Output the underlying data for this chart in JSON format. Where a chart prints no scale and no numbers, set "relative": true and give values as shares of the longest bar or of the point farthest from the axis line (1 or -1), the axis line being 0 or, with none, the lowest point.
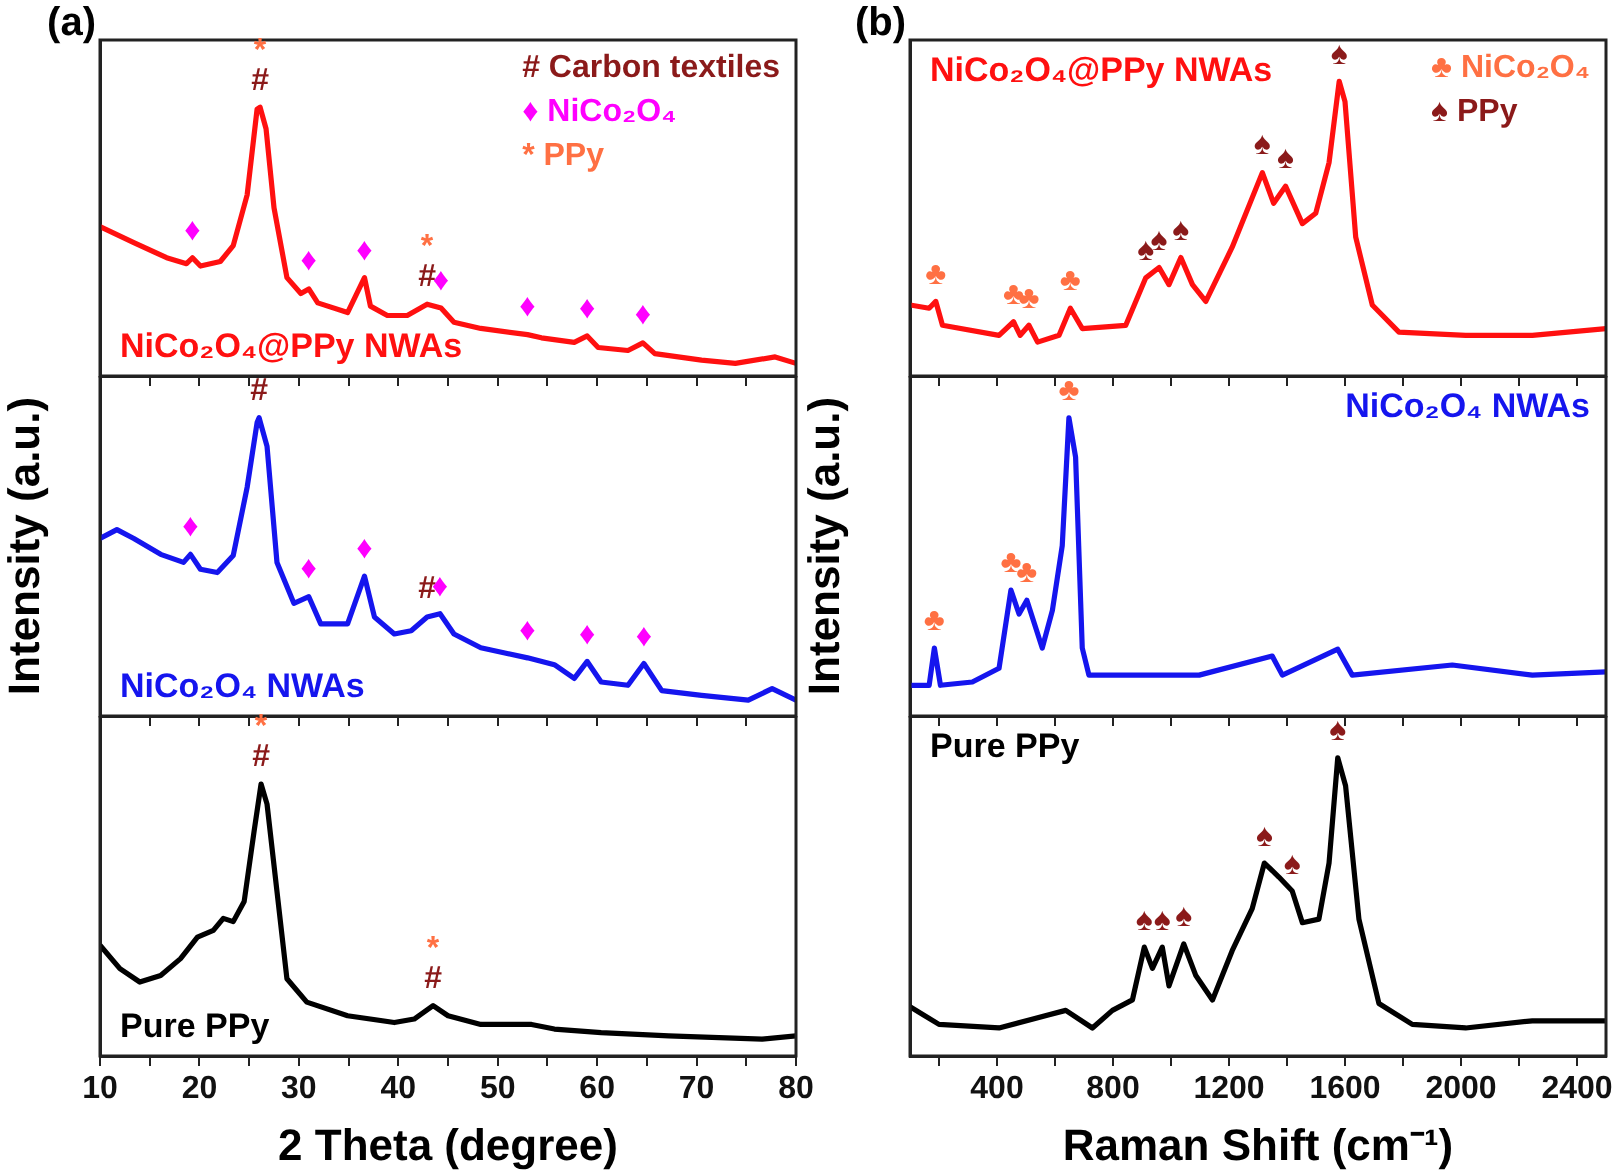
{
  "chart_data": [
    {
      "type": "line",
      "title": "(a)",
      "relative": true,
      "tick_labels": false,
      "xlim": [
        10,
        80
      ],
      "xticks": [
        10,
        {
          "value": 15,
          "label": null
        },
        20,
        {
          "value": 25,
          "label": null
        },
        30,
        {
          "value": 35,
          "label": null
        },
        40,
        {
          "value": 45,
          "label": null
        },
        50,
        {
          "value": 55,
          "label": null
        },
        60,
        {
          "value": 65,
          "label": null
        },
        70,
        {
          "value": 75,
          "label": null
        },
        80
      ],
      "series": [
        {
          "name": "NiCo₂O₄@PPy NWAs",
          "color": "#ff1010",
          "x": [
            10,
            13.4,
            16.7,
            18.7,
            19.3,
            20.1,
            22.1,
            23.4,
            24.8,
            25.8,
            26.1,
            26.7,
            27.5,
            28.8,
            30.2,
            31.0,
            31.9,
            34.9,
            36.6,
            37.2,
            38.9,
            40.9,
            42.9,
            44.3,
            45.6,
            48.3,
            53.0,
            54.4,
            57.7,
            59.0,
            60.1,
            63.1,
            64.6,
            65.8,
            70.5,
            73.9,
            77.9,
            80
          ],
          "values": [
            0.556,
            0.496,
            0.44,
            0.418,
            0.44,
            0.409,
            0.426,
            0.485,
            0.674,
            0.993,
            1.0,
            0.92,
            0.626,
            0.366,
            0.307,
            0.324,
            0.272,
            0.236,
            0.366,
            0.26,
            0.225,
            0.225,
            0.267,
            0.253,
            0.2,
            0.177,
            0.154,
            0.142,
            0.125,
            0.149,
            0.106,
            0.095,
            0.123,
            0.083,
            0.059,
            0.047,
            0.071,
            0.047
          ]
        }
      ],
      "annotations": [
        "# Carbon textiles",
        "♦ NiCo₂O₄",
        "* PPy",
        {
          "text": "#",
          "x": 26.1,
          "y": 1.0
        },
        {
          "text": "*",
          "x": 26.1,
          "y": 1.0
        },
        {
          "text": "♦",
          "x": 19.3,
          "y": 0.44
        },
        {
          "text": "♦",
          "x": 31.0,
          "y": 0.324
        },
        {
          "text": "♦",
          "x": 36.6,
          "y": 0.366
        },
        {
          "text": "♦",
          "x": 44.3,
          "y": 0.253
        },
        {
          "text": "♦",
          "x": 53.0,
          "y": 0.154
        },
        {
          "text": "♦",
          "x": 59.0,
          "y": 0.149
        },
        {
          "text": "♦",
          "x": 64.6,
          "y": 0.123
        },
        {
          "text": "#",
          "x": 42.9,
          "y": 0.267
        },
        {
          "text": "*",
          "x": 42.9,
          "y": 0.267
        }
      ]
    },
    {
      "type": "line",
      "ylabel": "Intensity (a.u.)",
      "relative": true,
      "tick_labels": false,
      "xlim": [
        10,
        80
      ],
      "xticks": [
        10,
        {
          "value": 15,
          "label": null
        },
        20,
        {
          "value": 25,
          "label": null
        },
        30,
        {
          "value": 35,
          "label": null
        },
        40,
        {
          "value": 45,
          "label": null
        },
        50,
        {
          "value": 55,
          "label": null
        },
        60,
        {
          "value": 65,
          "label": null
        },
        70,
        {
          "value": 75,
          "label": null
        },
        80
      ],
      "series": [
        {
          "name": "NiCo₂O₄ NWAs",
          "color": "#1515ee",
          "x": [
            10,
            11.7,
            13.4,
            16.1,
            18.4,
            19.1,
            20.1,
            21.8,
            23.4,
            24.8,
            25.8,
            26.0,
            26.8,
            27.8,
            29.5,
            31.0,
            32.2,
            34.9,
            36.6,
            37.6,
            39.6,
            41.3,
            42.9,
            44.2,
            45.6,
            48.3,
            53.0,
            55.7,
            57.7,
            59.0,
            60.4,
            63.1,
            64.7,
            66.5,
            70.5,
            75.2,
            77.6,
            80
          ],
          "values": [
            0.595,
            0.625,
            0.595,
            0.542,
            0.515,
            0.542,
            0.492,
            0.481,
            0.538,
            0.767,
            0.984,
            1.0,
            0.904,
            0.515,
            0.378,
            0.4,
            0.309,
            0.309,
            0.469,
            0.332,
            0.275,
            0.286,
            0.332,
            0.343,
            0.275,
            0.229,
            0.195,
            0.172,
            0.126,
            0.183,
            0.114,
            0.103,
            0.176,
            0.085,
            0.069,
            0.053,
            0.092,
            0.053
          ]
        }
      ],
      "annotations": [
        {
          "text": "#",
          "x": 26.0,
          "y": 1.0
        },
        {
          "text": "♦",
          "x": 19.1,
          "y": 0.542
        },
        {
          "text": "♦",
          "x": 31.0,
          "y": 0.4
        },
        {
          "text": "♦",
          "x": 36.6,
          "y": 0.469
        },
        {
          "text": "#",
          "x": 42.9,
          "y": 0.332
        },
        {
          "text": "♦",
          "x": 44.2,
          "y": 0.343
        },
        {
          "text": "♦",
          "x": 53.0,
          "y": 0.195
        },
        {
          "text": "♦",
          "x": 59.0,
          "y": 0.183
        },
        {
          "text": "♦",
          "x": 64.7,
          "y": 0.176
        }
      ]
    },
    {
      "type": "line",
      "xlabel": "2 Theta (degree)",
      "relative": true,
      "tick_labels": "x",
      "xlim": [
        10,
        80
      ],
      "xticks": [
        10,
        {
          "value": 15,
          "label": null
        },
        20,
        {
          "value": 25,
          "label": null
        },
        30,
        {
          "value": 35,
          "label": null
        },
        40,
        {
          "value": 45,
          "label": null
        },
        50,
        {
          "value": 55,
          "label": null
        },
        60,
        {
          "value": 65,
          "label": null
        },
        70,
        {
          "value": 75,
          "label": null
        },
        80
      ],
      "series": [
        {
          "name": "Pure PPy",
          "color": "#000000",
          "x": [
            10,
            12.0,
            14.0,
            16.1,
            18.1,
            19.8,
            21.4,
            22.4,
            23.4,
            24.5,
            25.5,
            26.2,
            26.8,
            27.8,
            28.8,
            30.8,
            34.9,
            39.6,
            41.6,
            43.5,
            45.0,
            48.3,
            53.4,
            55.7,
            60.4,
            67.2,
            76.6,
            80
          ],
          "values": [
            0.407,
            0.321,
            0.272,
            0.296,
            0.358,
            0.437,
            0.462,
            0.506,
            0.494,
            0.568,
            0.827,
            1.0,
            0.926,
            0.605,
            0.284,
            0.198,
            0.148,
            0.123,
            0.136,
            0.185,
            0.148,
            0.116,
            0.116,
            0.099,
            0.086,
            0.074,
            0.062,
            0.074
          ]
        }
      ],
      "annotations": [
        {
          "text": "#",
          "x": 26.2,
          "y": 1.0
        },
        {
          "text": "*",
          "x": 26.2,
          "y": 1.0
        },
        {
          "text": "#",
          "x": 43.5,
          "y": 0.185
        },
        {
          "text": "*",
          "x": 43.5,
          "y": 0.185
        }
      ]
    },
    {
      "type": "line",
      "title": "(b)",
      "relative": true,
      "tick_labels": false,
      "xlim": [
        100,
        2500
      ],
      "xticks": [
        {
          "value": 200,
          "label": null
        },
        400,
        {
          "value": 600,
          "label": null
        },
        800,
        {
          "value": 1000,
          "label": null
        },
        1200,
        {
          "value": 1400,
          "label": null
        },
        1600,
        {
          "value": 1800,
          "label": null
        },
        2000,
        {
          "value": 2200,
          "label": null
        },
        2400
      ],
      "series": [
        {
          "name": "NiCo₂O₄@PPy NWAs",
          "color": "#ff1010",
          "x": [
            100,
            166,
            189,
            212,
            407,
            457,
            480,
            510,
            540,
            614,
            653,
            694,
            844,
            913,
            959,
            993,
            1034,
            1074,
            1120,
            1211,
            1315,
            1354,
            1395,
            1453,
            1499,
            1545,
            1580,
            1600,
            1637,
            1694,
            1786,
            2016,
            2246,
            2500
          ],
          "values": [
            0.241,
            0.23,
            0.253,
            0.172,
            0.138,
            0.184,
            0.138,
            0.172,
            0.115,
            0.138,
            0.23,
            0.161,
            0.172,
            0.333,
            0.368,
            0.31,
            0.402,
            0.31,
            0.253,
            0.437,
            0.69,
            0.586,
            0.644,
            0.517,
            0.552,
            0.724,
            1.0,
            0.931,
            0.471,
            0.241,
            0.149,
            0.138,
            0.138,
            0.161
          ]
        }
      ],
      "annotations": [
        "♣ NiCo₂O₄",
        "♠ PPy",
        {
          "text": "♣",
          "x": 189,
          "y": 0.253
        },
        {
          "text": "♣",
          "x": 457,
          "y": 0.184
        },
        {
          "text": "♣",
          "x": 510,
          "y": 0.172
        },
        {
          "text": "♣",
          "x": 653,
          "y": 0.23
        },
        {
          "text": "♠",
          "x": 913,
          "y": 0.333
        },
        {
          "text": "♠",
          "x": 959,
          "y": 0.368
        },
        {
          "text": "♠",
          "x": 1034,
          "y": 0.402
        },
        {
          "text": "♠",
          "x": 1315,
          "y": 0.69
        },
        {
          "text": "♠",
          "x": 1395,
          "y": 0.644
        },
        {
          "text": "♠",
          "x": 1580,
          "y": 1.0
        }
      ]
    },
    {
      "type": "line",
      "ylabel": "Intensity (a.u.)",
      "relative": true,
      "tick_labels": false,
      "xlim": [
        100,
        2500
      ],
      "xticks": [
        {
          "value": 200,
          "label": null
        },
        400,
        {
          "value": 600,
          "label": null
        },
        800,
        {
          "value": 1000,
          "label": null
        },
        1200,
        {
          "value": 1400,
          "label": null
        },
        1600,
        {
          "value": 1800,
          "label": null
        },
        2000,
        {
          "value": 2200,
          "label": null
        },
        2400
      ],
      "series": [
        {
          "name": "NiCo₂O₄ NWAs",
          "color": "#1515ee",
          "x": [
            100,
            166,
            184,
            205,
            315,
            407,
            448,
            476,
            503,
            556,
            591,
            625,
            648,
            671,
            694,
            717,
            1097,
            1349,
            1384,
            1575,
            1625,
            1970,
            2246,
            2500
          ],
          "values": [
            0.103,
            0.103,
            0.228,
            0.103,
            0.114,
            0.16,
            0.422,
            0.342,
            0.388,
            0.228,
            0.354,
            0.571,
            1.0,
            0.868,
            0.228,
            0.137,
            0.137,
            0.201,
            0.137,
            0.224,
            0.137,
            0.171,
            0.137,
            0.148
          ]
        }
      ],
      "annotations": [
        {
          "text": "♣",
          "x": 184,
          "y": 0.228
        },
        {
          "text": "♣",
          "x": 448,
          "y": 0.422
        },
        {
          "text": "♣",
          "x": 503,
          "y": 0.388
        },
        {
          "text": "♣",
          "x": 648,
          "y": 1.0
        }
      ]
    },
    {
      "type": "line",
      "xlabel": "Raman Shift (cm⁻¹)",
      "relative": true,
      "tick_labels": "x",
      "xlim": [
        100,
        2500
      ],
      "xticks": [
        {
          "value": 200,
          "label": null
        },
        400,
        {
          "value": 600,
          "label": null
        },
        800,
        {
          "value": 1000,
          "label": null
        },
        1200,
        {
          "value": 1400,
          "label": null
        },
        1600,
        {
          "value": 1800,
          "label": null
        },
        2000,
        {
          "value": 2200,
          "label": null
        },
        2400
      ],
      "series": [
        {
          "name": "Pure PPy",
          "color": "#000000",
          "x": [
            100,
            200,
            407,
            637,
            729,
            798,
            867,
            908,
            936,
            970,
            993,
            1044,
            1085,
            1143,
            1211,
            1280,
            1322,
            1372,
            1418,
            1453,
            1510,
            1545,
            1575,
            1602,
            1648,
            1717,
            1832,
            2016,
            2246,
            2500
          ],
          "values": [
            0.165,
            0.106,
            0.094,
            0.153,
            0.094,
            0.153,
            0.188,
            0.365,
            0.294,
            0.365,
            0.235,
            0.376,
            0.271,
            0.188,
            0.353,
            0.494,
            0.647,
            0.6,
            0.553,
            0.447,
            0.459,
            0.647,
            1.0,
            0.906,
            0.459,
            0.176,
            0.106,
            0.094,
            0.118,
            0.118
          ]
        }
      ],
      "annotations": [
        {
          "text": "♠",
          "x": 908,
          "y": 0.365
        },
        {
          "text": "♠",
          "x": 970,
          "y": 0.365
        },
        {
          "text": "♠",
          "x": 1044,
          "y": 0.376
        },
        {
          "text": "♠",
          "x": 1322,
          "y": 0.647
        },
        {
          "text": "♠",
          "x": 1418,
          "y": 0.553
        },
        {
          "text": "♠",
          "x": 1575,
          "y": 1.0
        }
      ]
    }
  ]
}
